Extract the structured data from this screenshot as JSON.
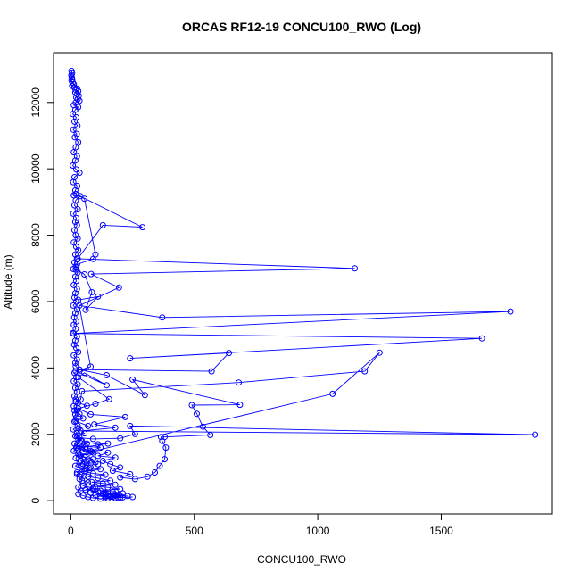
{
  "chart_data": {
    "type": "line",
    "title": "ORCAS RF12-19 CONCU100_RWO (Log)",
    "xlabel": "CONCU100_RWO",
    "ylabel": "Altitude (m)",
    "xlim": [
      -70,
      1950
    ],
    "ylim": [
      -400,
      13500
    ],
    "x_ticks": [
      0,
      500,
      1000,
      1500
    ],
    "y_ticks": [
      0,
      2000,
      4000,
      6000,
      8000,
      10000,
      12000
    ],
    "series": [
      {
        "color": "#0000ff",
        "marker": "open-circle",
        "points": [
          [
            3,
            12950
          ],
          [
            5,
            12880
          ],
          [
            2,
            12820
          ],
          [
            4,
            12760
          ],
          [
            6,
            12700
          ],
          [
            3,
            12650
          ],
          [
            8,
            12600
          ],
          [
            12,
            12550
          ],
          [
            5,
            12500
          ],
          [
            15,
            12450
          ],
          [
            25,
            12420
          ],
          [
            20,
            12380
          ],
          [
            30,
            12340
          ],
          [
            18,
            12300
          ],
          [
            26,
            12250
          ],
          [
            32,
            12200
          ],
          [
            22,
            12150
          ],
          [
            28,
            12100
          ],
          [
            35,
            12050
          ],
          [
            20,
            12000
          ],
          [
            12,
            11920
          ],
          [
            30,
            11860
          ],
          [
            18,
            11780
          ],
          [
            8,
            11650
          ],
          [
            22,
            11550
          ],
          [
            15,
            11420
          ],
          [
            27,
            11300
          ],
          [
            10,
            11180
          ],
          [
            24,
            11050
          ],
          [
            16,
            10950
          ],
          [
            30,
            10800
          ],
          [
            20,
            10650
          ],
          [
            12,
            10500
          ],
          [
            25,
            10380
          ],
          [
            18,
            10250
          ],
          [
            8,
            10100
          ],
          [
            22,
            9980
          ],
          [
            35,
            9880
          ],
          [
            15,
            9750
          ],
          [
            10,
            9600
          ],
          [
            26,
            9480
          ],
          [
            18,
            9350
          ],
          [
            12,
            9200
          ],
          [
            38,
            9180
          ],
          [
            20,
            9050
          ],
          [
            15,
            8900
          ],
          [
            28,
            8780
          ],
          [
            10,
            8650
          ],
          [
            22,
            8520
          ],
          [
            18,
            8400
          ],
          [
            25,
            8300
          ],
          [
            15,
            8150
          ],
          [
            20,
            8000
          ],
          [
            28,
            7900
          ],
          [
            12,
            7780
          ],
          [
            22,
            7650
          ],
          [
            30,
            7550
          ],
          [
            18,
            7420
          ],
          [
            25,
            7300
          ],
          [
            15,
            7180
          ],
          [
            20,
            7050
          ],
          [
            10,
            6980
          ],
          [
            28,
            6880
          ],
          [
            18,
            6750
          ],
          [
            22,
            6620
          ],
          [
            12,
            6500
          ],
          [
            25,
            6380
          ],
          [
            18,
            6250
          ],
          [
            15,
            6120
          ],
          [
            22,
            6000
          ],
          [
            10,
            5880
          ],
          [
            25,
            5760
          ],
          [
            18,
            5650
          ],
          [
            14,
            5520
          ],
          [
            22,
            5400
          ],
          [
            12,
            5300
          ],
          [
            20,
            5180
          ],
          [
            8,
            5050
          ],
          [
            25,
            4950
          ],
          [
            18,
            4820
          ],
          [
            14,
            4700
          ],
          [
            22,
            4600
          ],
          [
            30,
            4480
          ],
          [
            12,
            4380
          ],
          [
            25,
            4250
          ],
          [
            18,
            4150
          ],
          [
            20,
            4050
          ],
          [
            35,
            3950
          ],
          [
            15,
            3850
          ],
          [
            22,
            3720
          ],
          [
            12,
            3600
          ],
          [
            28,
            3500
          ],
          [
            18,
            3400
          ],
          [
            25,
            3280
          ],
          [
            15,
            3150
          ],
          [
            20,
            3050
          ],
          [
            30,
            2950
          ],
          [
            12,
            2850
          ],
          [
            25,
            2720
          ],
          [
            18,
            2600
          ],
          [
            22,
            2500
          ],
          [
            15,
            2380
          ],
          [
            28,
            2250
          ],
          [
            10,
            2150
          ],
          [
            25,
            2050
          ],
          [
            18,
            1950
          ],
          [
            30,
            1850
          ],
          [
            15,
            1720
          ],
          [
            22,
            1600
          ],
          [
            12,
            1500
          ],
          [
            30,
            1400
          ],
          [
            20,
            1280
          ],
          [
            35,
            1150
          ],
          [
            18,
            1050
          ],
          [
            45,
            950
          ],
          [
            25,
            850
          ],
          [
            55,
            750
          ],
          [
            35,
            650
          ],
          [
            70,
            550
          ],
          [
            50,
            450
          ],
          [
            90,
            380
          ],
          [
            60,
            330
          ],
          [
            110,
            280
          ],
          [
            80,
            240
          ],
          [
            130,
            200
          ],
          [
            100,
            170
          ],
          [
            150,
            150
          ],
          [
            120,
            130
          ],
          [
            170,
            120
          ],
          [
            140,
            110
          ],
          [
            190,
            100
          ],
          [
            160,
            140
          ],
          [
            195,
            180
          ],
          [
            175,
            200
          ],
          [
            185,
            160
          ],
          [
            140,
            250
          ],
          [
            120,
            300
          ],
          [
            90,
            350
          ],
          [
            60,
            320
          ],
          [
            40,
            300
          ],
          [
            30,
            400
          ],
          [
            45,
            600
          ],
          [
            25,
            800
          ],
          [
            60,
            900
          ],
          [
            80,
            1000
          ],
          [
            50,
            1100
          ],
          [
            100,
            1150
          ],
          [
            70,
            1250
          ],
          [
            40,
            1350
          ],
          [
            90,
            1450
          ],
          [
            60,
            1550
          ],
          [
            35,
            1650
          ],
          [
            120,
            1600
          ],
          [
            80,
            1500
          ],
          [
            150,
            1450
          ],
          [
            110,
            1350
          ],
          [
            180,
            1300
          ],
          [
            130,
            1200
          ],
          [
            160,
            1100
          ],
          [
            200,
            1000
          ],
          [
            170,
            900
          ],
          [
            240,
            800
          ],
          [
            200,
            700
          ],
          [
            260,
            650
          ],
          [
            310,
            720
          ],
          [
            340,
            850
          ],
          [
            360,
            1050
          ],
          [
            380,
            1250
          ],
          [
            385,
            1600
          ],
          [
            370,
            1800
          ],
          [
            365,
            1920
          ],
          [
            380,
            1920
          ],
          [
            565,
            1980
          ],
          [
            535,
            2230
          ],
          [
            510,
            2620
          ],
          [
            490,
            2880
          ],
          [
            685,
            2890
          ],
          [
            250,
            3650
          ],
          [
            300,
            3180
          ],
          [
            145,
            3780
          ],
          [
            35,
            3950
          ],
          [
            570,
            3900
          ],
          [
            640,
            4450
          ],
          [
            240,
            4290
          ],
          [
            1665,
            4890
          ],
          [
            12,
            5040
          ],
          [
            1780,
            5700
          ],
          [
            370,
            5520
          ],
          [
            35,
            5880
          ],
          [
            195,
            6420
          ],
          [
            82,
            6830
          ],
          [
            1150,
            7000
          ],
          [
            28,
            7290
          ],
          [
            130,
            8300
          ],
          [
            290,
            8240
          ],
          [
            20,
            9240
          ],
          [
            55,
            9100
          ],
          [
            100,
            7420
          ],
          [
            90,
            7280
          ],
          [
            25,
            7120
          ],
          [
            20,
            6960
          ],
          [
            55,
            6820
          ],
          [
            85,
            6280
          ],
          [
            60,
            5750
          ],
          [
            110,
            6150
          ],
          [
            30,
            6050
          ],
          [
            80,
            4040
          ],
          [
            20,
            3900
          ],
          [
            145,
            3480
          ],
          [
            55,
            3850
          ],
          [
            30,
            3720
          ],
          [
            155,
            3060
          ],
          [
            100,
            2920
          ],
          [
            30,
            2780
          ],
          [
            80,
            2600
          ],
          [
            220,
            2520
          ],
          [
            95,
            2300
          ],
          [
            180,
            2200
          ],
          [
            40,
            2100
          ],
          [
            1880,
            1990
          ],
          [
            240,
            2250
          ],
          [
            260,
            2010
          ],
          [
            200,
            1880
          ],
          [
            90,
            1860
          ],
          [
            35,
            1900
          ],
          [
            45,
            1800
          ],
          [
            110,
            1700
          ],
          [
            150,
            1720
          ],
          [
            60,
            1620
          ],
          [
            30,
            1550
          ],
          [
            85,
            1480
          ],
          [
            1060,
            3220
          ],
          [
            1250,
            4460
          ],
          [
            1190,
            3900
          ],
          [
            680,
            3560
          ],
          [
            45,
            3300
          ],
          [
            40,
            3050
          ],
          [
            20,
            2980
          ],
          [
            65,
            2860
          ],
          [
            15,
            2720
          ],
          [
            35,
            2620
          ],
          [
            50,
            2480
          ],
          [
            20,
            2400
          ],
          [
            70,
            2250
          ],
          [
            30,
            2180
          ],
          [
            55,
            2030
          ],
          [
            25,
            1950
          ],
          [
            40,
            1820
          ],
          [
            65,
            1720
          ],
          [
            25,
            1650
          ],
          [
            45,
            1550
          ],
          [
            75,
            1450
          ],
          [
            35,
            1380
          ],
          [
            55,
            1320
          ],
          [
            90,
            1250
          ],
          [
            40,
            1200
          ],
          [
            65,
            1150
          ],
          [
            110,
            1100
          ],
          [
            45,
            1050
          ],
          [
            75,
            980
          ],
          [
            120,
            950
          ],
          [
            55,
            880
          ],
          [
            90,
            820
          ],
          [
            140,
            780
          ],
          [
            70,
            720
          ],
          [
            110,
            680
          ],
          [
            160,
            600
          ],
          [
            85,
            560
          ],
          [
            130,
            520
          ],
          [
            180,
            480
          ],
          [
            100,
            430
          ],
          [
            150,
            400
          ],
          [
            200,
            350
          ],
          [
            120,
            300
          ],
          [
            170,
            270
          ],
          [
            210,
            220
          ],
          [
            140,
            190
          ],
          [
            190,
            160
          ],
          [
            230,
            140
          ],
          [
            160,
            120
          ],
          [
            210,
            100
          ],
          [
            180,
            80
          ],
          [
            250,
            110
          ],
          [
            200,
            90
          ],
          [
            150,
            70
          ],
          [
            120,
            60
          ],
          [
            90,
            80
          ],
          [
            70,
            110
          ],
          [
            50,
            150
          ],
          [
            30,
            200
          ]
        ]
      }
    ],
    "grid": false,
    "legend": "none"
  }
}
